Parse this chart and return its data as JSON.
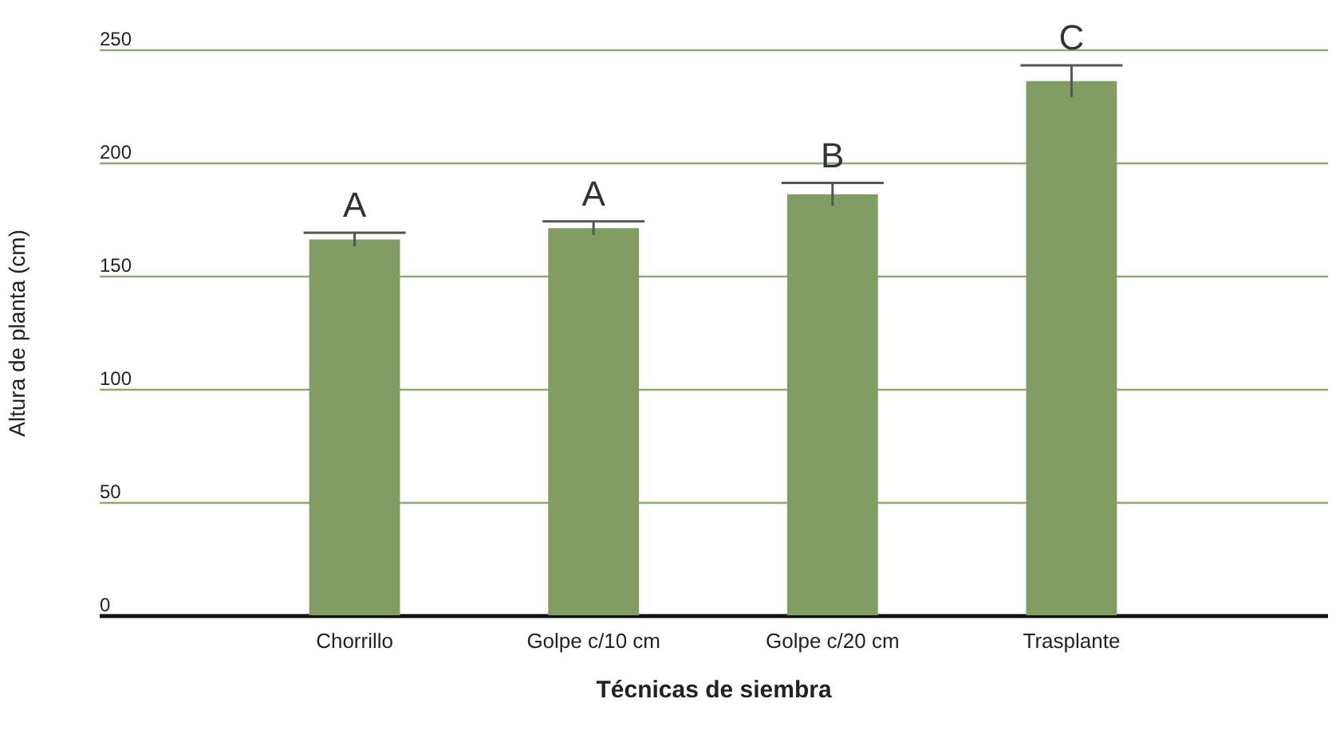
{
  "chart_data": {
    "type": "bar",
    "xlabel": "Técnicas de siembra",
    "ylabel": "Altura de planta (cm)",
    "categories": [
      "Chorrillo",
      "Golpe c/10 cm",
      "Golpe c/20 cm",
      "Trasplante"
    ],
    "values": [
      166,
      171,
      186,
      236
    ],
    "errors": [
      3,
      3,
      5,
      7
    ],
    "color": "#829d63",
    "ylim": [
      0,
      250
    ],
    "yticks": [
      0,
      50,
      100,
      150,
      200,
      250
    ],
    "grid": "y",
    "annotations": [
      {
        "text": "A",
        "x": "Chorrillo",
        "y": 169
      },
      {
        "text": "A",
        "x": "Golpe c/10 cm",
        "y": 174
      },
      {
        "text": "B",
        "x": "Golpe c/20 cm",
        "y": 191
      },
      {
        "text": "C",
        "x": "Trasplante",
        "y": 243
      }
    ]
  }
}
